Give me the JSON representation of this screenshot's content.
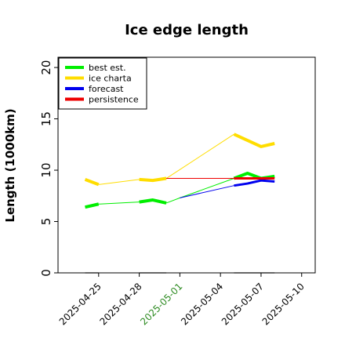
{
  "chart_data": {
    "type": "line",
    "title": "Ice edge length",
    "ylabel": "Length (1000km)",
    "xlabel": "",
    "ylim": [
      0,
      21
    ],
    "xlim": [
      "2025-04-22",
      "2025-05-11"
    ],
    "yticks": [
      0,
      5,
      10,
      15,
      20
    ],
    "xticks": [
      {
        "label": "2025-04-25",
        "color": "#000000"
      },
      {
        "label": "2025-04-28",
        "color": "#000000"
      },
      {
        "label": "2025-05-01",
        "color": "#2e8b22"
      },
      {
        "label": "2025-05-04",
        "color": "#000000"
      },
      {
        "label": "2025-05-07",
        "color": "#000000"
      },
      {
        "label": "2025-05-10",
        "color": "#000000"
      }
    ],
    "legend_position": "top-left",
    "grid": false,
    "series": [
      {
        "name": "best est.",
        "color": "#00ee00",
        "width": 4,
        "segments": [
          [
            [
              "2025-04-24",
              6.4
            ],
            [
              "2025-04-25",
              6.7
            ]
          ],
          [
            [
              "2025-04-28",
              6.9
            ],
            [
              "2025-04-29",
              7.1
            ],
            [
              "2025-04-30",
              6.8
            ]
          ],
          [
            [
              "2025-05-05",
              9.2
            ],
            [
              "2025-05-06",
              9.7
            ],
            [
              "2025-05-07",
              9.2
            ],
            [
              "2025-05-08",
              9.4
            ]
          ]
        ]
      },
      {
        "name": "",
        "color": "#00ee00",
        "width": 1,
        "segments": [
          [
            [
              "2025-04-25",
              6.7
            ],
            [
              "2025-04-28",
              6.9
            ]
          ],
          [
            [
              "2025-04-30",
              6.8
            ],
            [
              "2025-05-01",
              7.3
            ],
            [
              "2025-05-05",
              9.2
            ]
          ]
        ]
      },
      {
        "name": "ice charta",
        "color": "#ffdd00",
        "width": 4,
        "segments": [
          [
            [
              "2025-04-24",
              9.1
            ],
            [
              "2025-04-25",
              8.6
            ]
          ],
          [
            [
              "2025-04-28",
              9.1
            ],
            [
              "2025-04-29",
              9.0
            ],
            [
              "2025-04-30",
              9.2
            ]
          ],
          [
            [
              "2025-05-05",
              13.5
            ],
            [
              "2025-05-06",
              12.9
            ],
            [
              "2025-05-07",
              12.3
            ],
            [
              "2025-05-08",
              12.6
            ]
          ]
        ]
      },
      {
        "name": "",
        "color": "#ffdd00",
        "width": 1,
        "segments": [
          [
            [
              "2025-04-25",
              8.6
            ],
            [
              "2025-04-28",
              9.1
            ]
          ],
          [
            [
              "2025-04-30",
              9.2
            ],
            [
              "2025-05-05",
              13.5
            ]
          ]
        ]
      },
      {
        "name": "forecast",
        "color": "#0000ee",
        "width": 1,
        "segments": [
          [
            [
              "2025-05-01",
              7.3
            ],
            [
              "2025-05-05",
              8.5
            ]
          ]
        ]
      },
      {
        "name": "",
        "color": "#0000ee",
        "width": 3,
        "segments": [
          [
            [
              "2025-05-05",
              8.5
            ],
            [
              "2025-05-06",
              8.7
            ],
            [
              "2025-05-07",
              9.0
            ],
            [
              "2025-05-08",
              8.9
            ]
          ]
        ]
      },
      {
        "name": "persistence",
        "color": "#ee0000",
        "width": 1,
        "segments": [
          [
            [
              "2025-04-30",
              9.2
            ],
            [
              "2025-05-05",
              9.2
            ]
          ]
        ]
      },
      {
        "name": "",
        "color": "#ee0000",
        "width": 3,
        "segments": [
          [
            [
              "2025-05-05",
              9.2
            ],
            [
              "2025-05-08",
              9.2
            ]
          ]
        ]
      }
    ],
    "baseline_markers": {
      "color": "#999999",
      "segments": [
        [
          [
            "2025-04-24",
            0
          ],
          [
            "2025-04-25",
            0
          ]
        ],
        [
          [
            "2025-04-28",
            0
          ],
          [
            "2025-04-30",
            0
          ]
        ],
        [
          [
            "2025-05-05",
            0
          ],
          [
            "2025-05-08",
            0
          ]
        ]
      ]
    }
  }
}
